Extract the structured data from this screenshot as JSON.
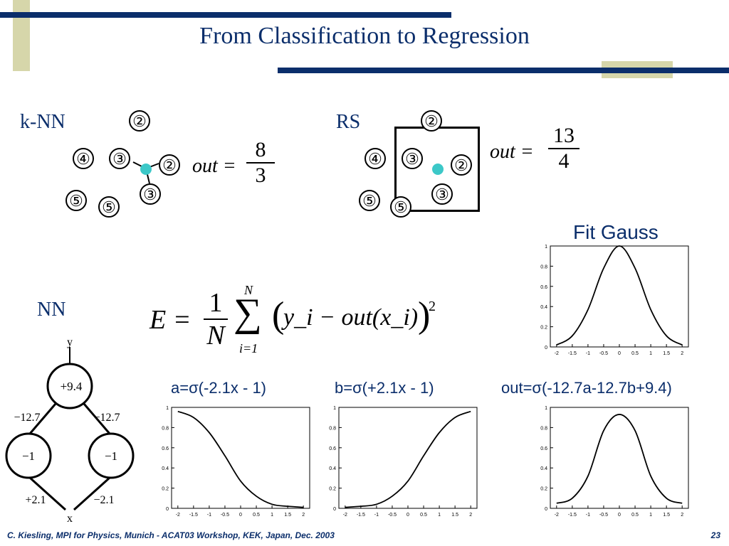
{
  "slide": {
    "title": "From Classification to Regression",
    "footer": "C. Kiesling, MPI for Physics, Munich   -   ACAT03 Workshop, KEK, Japan, Dec. 2003",
    "page_number": "23"
  },
  "colors": {
    "title": "#0b2e6b",
    "accent_bar": "#0b2e6b",
    "khaki": "#d6d6aa",
    "dot": "#3cc8c8"
  },
  "knn": {
    "label": "k-NN",
    "neighbors": [
      "②",
      "④",
      "③",
      "②",
      "③",
      "⑤",
      "⑤"
    ],
    "out_label": "out =",
    "numerator": "8",
    "denominator": "3"
  },
  "rs": {
    "label": "RS",
    "neighbors": [
      "②",
      "④",
      "③",
      "②",
      "③",
      "⑤",
      "⑤"
    ],
    "out_label": "out =",
    "numerator": "13",
    "denominator": "4"
  },
  "nn": {
    "label": "NN",
    "error_formula": {
      "lhs": "E =",
      "numerator": "1",
      "denominator": "N",
      "sum_upper": "N",
      "sum_lower": "i=1",
      "body": "y_i − out(x_i)",
      "power": "2"
    },
    "network": {
      "output_var": "y",
      "input_var": "x",
      "output_node": "+9.4",
      "hidden_left": "−1",
      "hidden_right": "−1",
      "weight_top_left": "−12.7",
      "weight_top_right": "−12.7",
      "weight_bottom_left": "+2.1",
      "weight_bottom_right": "−2.1"
    }
  },
  "plot_labels": {
    "fit_gauss": "Fit Gauss",
    "a": "a=σ(-2.1x - 1)",
    "b": "b=σ(+2.1x - 1)",
    "out": "out=σ(-12.7a-12.7b+9.4)"
  },
  "chart_data": [
    {
      "type": "line",
      "title": "Fit Gauss",
      "x": [
        -2,
        -1.5,
        -1,
        -0.5,
        0,
        0.5,
        1,
        1.5,
        2
      ],
      "series": [
        {
          "values": [
            0.02,
            0.11,
            0.37,
            0.78,
            1.0,
            0.78,
            0.37,
            0.11,
            0.02
          ]
        }
      ],
      "xlim": [
        -2.2,
        2.2
      ],
      "ylim": [
        0,
        1
      ],
      "xticks": [
        "-2",
        "-1.5",
        "-1",
        "-0.5",
        "0",
        "0.5",
        "1",
        "1.5",
        "2"
      ],
      "yticks": [
        "0",
        "0.2",
        "0.4",
        "0.6",
        "0.8",
        "1"
      ]
    },
    {
      "type": "line",
      "title": "a=σ(-2.1x - 1)",
      "x": [
        -2,
        -1.5,
        -1,
        -0.5,
        0,
        0.5,
        1,
        1.5,
        2
      ],
      "series": [
        {
          "values": [
            0.96,
            0.9,
            0.75,
            0.52,
            0.27,
            0.12,
            0.04,
            0.02,
            0.01
          ]
        }
      ],
      "xlim": [
        -2.2,
        2.2
      ],
      "ylim": [
        0,
        1
      ],
      "xticks": [
        "-2",
        "-1.5",
        "-1",
        "-0.5",
        "0",
        "0.5",
        "1",
        "1.5",
        "2"
      ],
      "yticks": [
        "0",
        "0.2",
        "0.4",
        "0.6",
        "0.8",
        "1"
      ]
    },
    {
      "type": "line",
      "title": "b=σ(+2.1x - 1)",
      "x": [
        -2,
        -1.5,
        -1,
        -0.5,
        0,
        0.5,
        1,
        1.5,
        2
      ],
      "series": [
        {
          "values": [
            0.01,
            0.02,
            0.04,
            0.12,
            0.27,
            0.52,
            0.75,
            0.9,
            0.96
          ]
        }
      ],
      "xlim": [
        -2.2,
        2.2
      ],
      "ylim": [
        0,
        1
      ],
      "xticks": [
        "-2",
        "-1.5",
        "-1",
        "-0.5",
        "0",
        "0.5",
        "1",
        "1.5",
        "2"
      ],
      "yticks": [
        "0",
        "0.2",
        "0.4",
        "0.6",
        "0.8",
        "1"
      ]
    },
    {
      "type": "line",
      "title": "out=σ(-12.7a-12.7b+9.4)",
      "x": [
        -2,
        -1.5,
        -1,
        -0.5,
        0,
        0.5,
        1,
        1.5,
        2
      ],
      "series": [
        {
          "values": [
            0.05,
            0.1,
            0.32,
            0.77,
            0.93,
            0.77,
            0.32,
            0.1,
            0.05
          ]
        }
      ],
      "xlim": [
        -2.2,
        2.2
      ],
      "ylim": [
        0,
        1
      ],
      "xticks": [
        "-2",
        "-1.5",
        "-1",
        "-0.5",
        "0",
        "0.5",
        "1",
        "1.5",
        "2"
      ],
      "yticks": [
        "0",
        "0.2",
        "0.4",
        "0.6",
        "0.8",
        "1"
      ]
    }
  ]
}
